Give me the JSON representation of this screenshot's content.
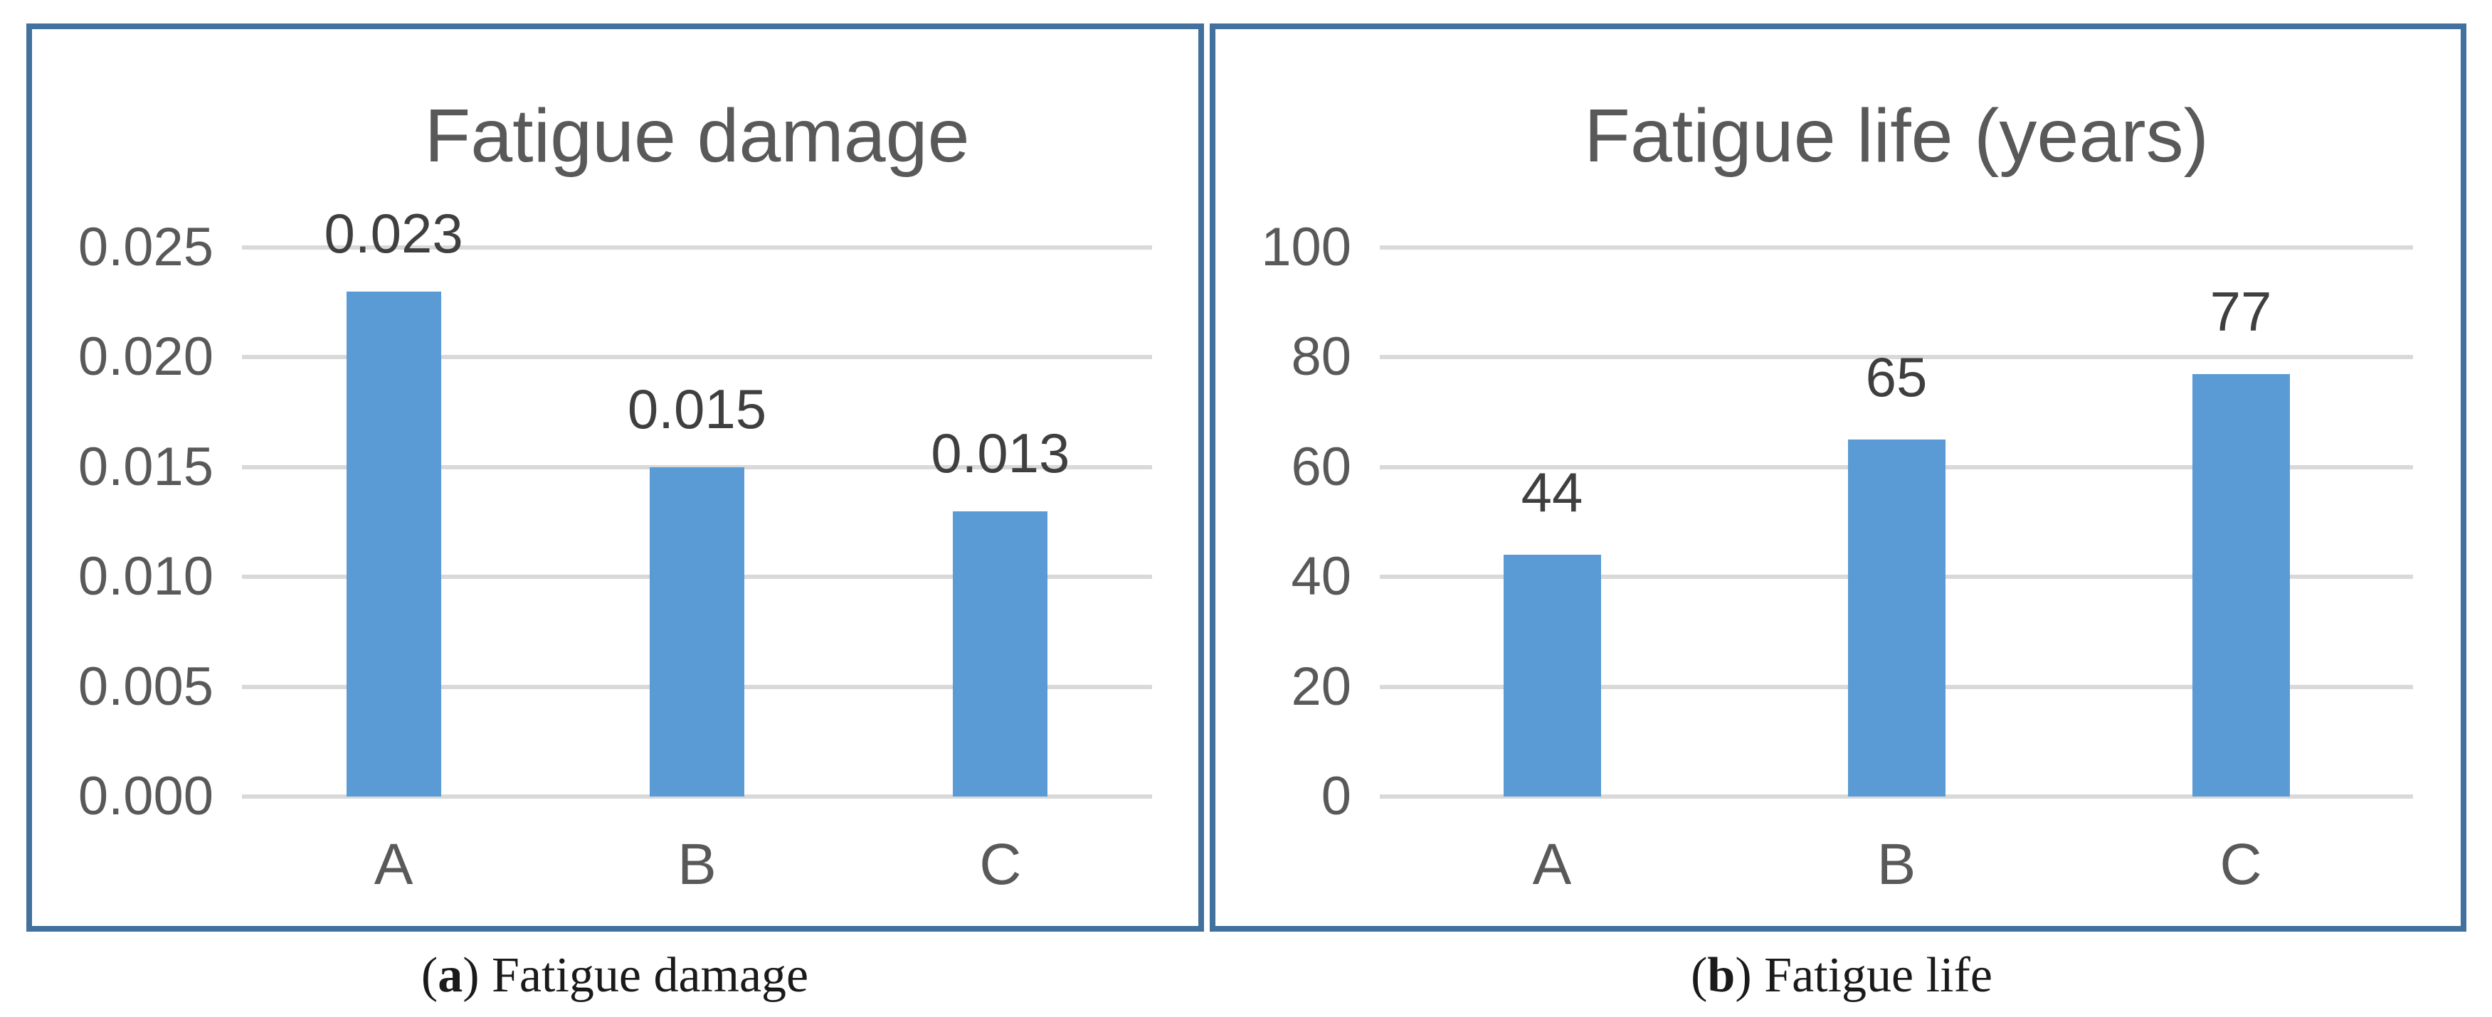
{
  "chart_data": [
    {
      "type": "bar",
      "title": "Fatigue damage",
      "categories": [
        "A",
        "B",
        "C"
      ],
      "values": [
        0.023,
        0.015,
        0.013
      ],
      "data_labels": [
        "0.023",
        "0.015",
        "0.013"
      ],
      "y_tick_labels_top_to_bottom": [
        "0.025",
        "0.020",
        "0.015",
        "0.010",
        "0.005",
        "0.000"
      ],
      "ylim": [
        0,
        0.025
      ],
      "xlabel": "",
      "ylabel": "",
      "grid": true,
      "legend": false,
      "data_label_position": "outside-end"
    },
    {
      "type": "bar",
      "title": "Fatigue life (years)",
      "categories": [
        "A",
        "B",
        "C"
      ],
      "values": [
        44,
        65,
        77
      ],
      "data_labels": [
        "44",
        "65",
        "77"
      ],
      "y_tick_labels_top_to_bottom": [
        "100",
        "80",
        "60",
        "40",
        "20",
        "0"
      ],
      "ylim": [
        0,
        100
      ],
      "xlabel": "",
      "ylabel": "",
      "grid": true,
      "legend": false,
      "data_label_position": "outside-end"
    }
  ],
  "figure": {
    "captions": [
      {
        "open": "(",
        "label": "a",
        "close": ") ",
        "text": "Fatigue damage"
      },
      {
        "open": "(",
        "label": "b",
        "close": ") ",
        "text": "Fatigue life"
      }
    ],
    "colors": {
      "bar_fill": "#5B9BD5",
      "panel_border": "#41719C",
      "gridline": "#D9D9D9",
      "tick_text": "#595959",
      "category_text": "#595959",
      "title_text": "#595959",
      "data_label_text": "#3F3F3F",
      "caption_text": "#1A1A1A",
      "background": "#FFFFFF"
    }
  }
}
